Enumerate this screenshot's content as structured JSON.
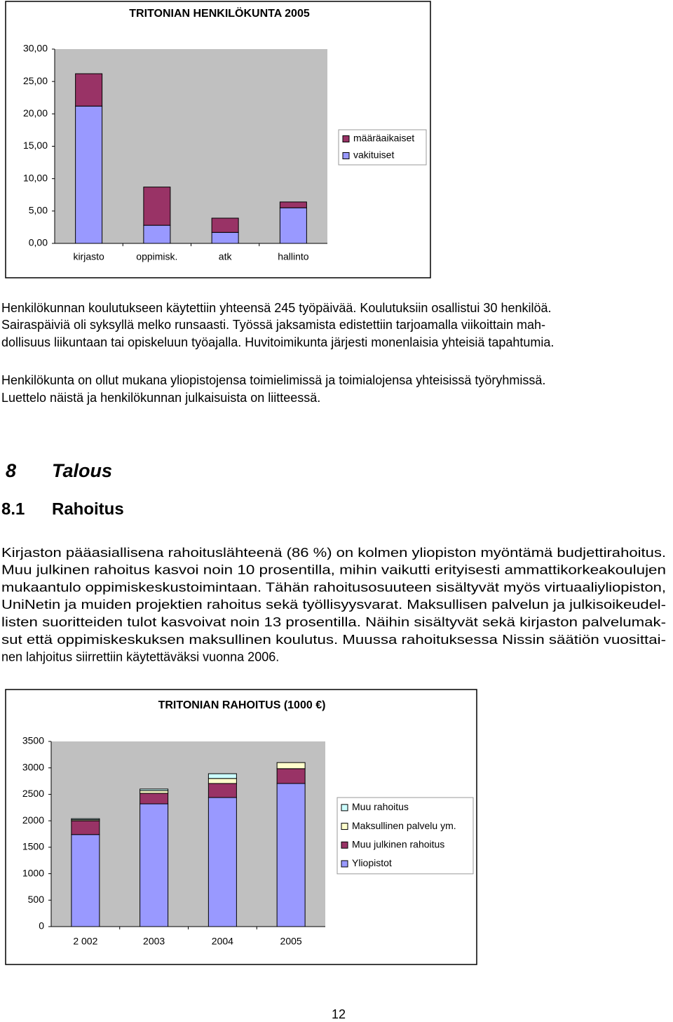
{
  "chart_data": [
    {
      "type": "stacked-bar",
      "title": "TRITONIAN HENKILÖKUNTA 2005",
      "categories": [
        "kirjasto",
        "oppimisk.",
        "atk",
        "hallinto"
      ],
      "series": [
        {
          "name": "vakituiset",
          "color": "#9999ff",
          "values": [
            21.2,
            2.8,
            1.7,
            5.5
          ]
        },
        {
          "name": "määräaikaiset",
          "color": "#993366",
          "values": [
            5.0,
            5.9,
            2.2,
            0.9
          ]
        }
      ],
      "ylim": [
        0,
        30
      ],
      "yticks": [
        {
          "value": 0,
          "label": "0,00"
        },
        {
          "value": 5,
          "label": "5,00"
        },
        {
          "value": 10,
          "label": "10,00"
        },
        {
          "value": 15,
          "label": "15,00"
        },
        {
          "value": 20,
          "label": "20,00"
        },
        {
          "value": 25,
          "label": "25,00"
        },
        {
          "value": 30,
          "label": "30,00"
        }
      ],
      "grid": false,
      "legend": "right",
      "plot_background": "#c0c0c0"
    },
    {
      "type": "stacked-bar",
      "title": "TRITONIAN RAHOITUS  (1000 €)",
      "categories": [
        "2 002",
        "2003",
        "2004",
        "2005"
      ],
      "series": [
        {
          "name": "Yliopistot",
          "color": "#9999ff",
          "values": [
            1740,
            2320,
            2440,
            2705
          ]
        },
        {
          "name": "Muu julkinen rahoitus",
          "color": "#993366",
          "values": [
            260,
            200,
            265,
            280
          ]
        },
        {
          "name": "Maksullinen palvelu ym.",
          "color": "#ffffcc",
          "values": [
            20,
            50,
            95,
            115
          ]
        },
        {
          "name": "Muu rahoitus",
          "color": "#ccffff",
          "values": [
            20,
            30,
            90,
            0
          ]
        }
      ],
      "ylim": [
        0,
        3500
      ],
      "yticks": [
        0,
        500,
        1000,
        1500,
        2000,
        2500,
        3000,
        3500
      ],
      "grid": false,
      "legend": "right",
      "plot_background": "#c0c0c0"
    }
  ],
  "document": {
    "paragraphs": [
      [
        "Henkilökunnan koulutukseen käytettiin yhteensä 245 työpäivää. Koulutuksiin osallistui 30 henkilöä.",
        "Sairaspäiviä oli syksyllä melko runsaasti. Työssä jaksamista edistettiin tarjoamalla viikoittain mah-",
        "dollisuus liikuntaan tai opiskeluun työajalla. Huvitoimikunta järjesti monenlaisia yhteisiä tapahtumia."
      ],
      [
        "Henkilökunta on ollut mukana yliopistojensa toimielimissä ja toimialojensa yhteisissä työryhmissä.",
        "Luettelo näistä ja henkilökunnan julkaisuista on liitteessä."
      ]
    ],
    "heading1": {
      "number": "8",
      "title": "Talous"
    },
    "heading2": {
      "number": "8.1",
      "title": "Rahoitus"
    },
    "paragraph3": [
      "Kirjaston pääasiallisena rahoituslähteenä (86 %) on kolmen yliopiston myöntämä budjettirahoitus.",
      "Muu julkinen rahoitus kasvoi noin 10 prosentilla, mihin vaikutti erityisesti ammattikorkeakoulujen",
      "mukaantulo oppimiskeskustoimintaan.  Tähän rahoitusosuuteen sisältyvät myös virtuaaliyliopiston,",
      "UniNetin ja muiden projektien rahoitus sekä työllisyysvarat.  Maksullisen palvelun ja julkisoikeudel-",
      "listen suoritteiden tulot kasvoivat noin 13 prosentilla.  Näihin sisältyvät sekä kirjaston palvelumak-",
      "sut että oppimiskeskuksen maksullinen koulutus.  Muussa rahoituksessa Nissin säätiön vuosittai-",
      "nen lahjoitus siirrettiin käytettäväksi vuonna 2006."
    ],
    "page_number": "12"
  }
}
